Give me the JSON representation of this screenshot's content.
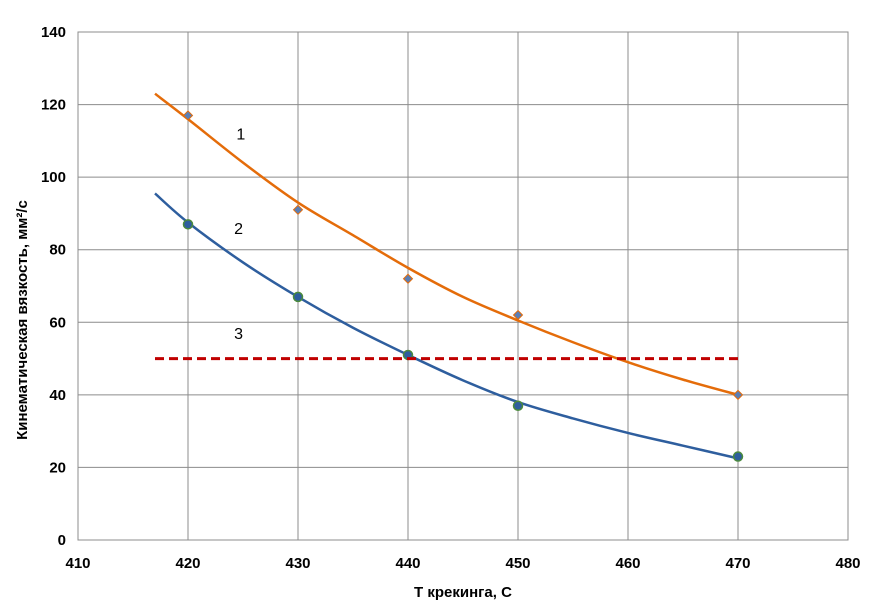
{
  "chart_data": {
    "type": "scatter",
    "title": "",
    "xlabel": "Т крекинга, С",
    "ylabel": "Кинематическая  вязкость, мм²/с",
    "xlim": [
      410,
      480
    ],
    "ylim": [
      0,
      140
    ],
    "x_ticks": [
      410,
      420,
      430,
      440,
      450,
      460,
      470,
      480
    ],
    "y_ticks": [
      0,
      20,
      40,
      60,
      80,
      100,
      120,
      140
    ],
    "grid": true,
    "legend": "none",
    "series": [
      {
        "label": "1",
        "color": "#e46c0a",
        "marker": "diamond",
        "marker_color": "#5b7fb5",
        "points": [
          [
            420,
            117
          ],
          [
            430,
            91
          ],
          [
            440,
            72
          ],
          [
            450,
            62
          ],
          [
            470,
            40
          ]
        ],
        "trend": [
          [
            417,
            123
          ],
          [
            420,
            116
          ],
          [
            425,
            104
          ],
          [
            430,
            93
          ],
          [
            435,
            84
          ],
          [
            440,
            75
          ],
          [
            445,
            67
          ],
          [
            450,
            60.5
          ],
          [
            455,
            54.5
          ],
          [
            460,
            49
          ],
          [
            465,
            44.2
          ],
          [
            470,
            40
          ]
        ]
      },
      {
        "label": "2",
        "color": "#2e5e9e",
        "marker": "circle",
        "marker_color": "#4a8a3c",
        "points": [
          [
            420,
            87
          ],
          [
            430,
            67
          ],
          [
            440,
            51
          ],
          [
            450,
            37
          ],
          [
            470,
            23
          ]
        ],
        "trend": [
          [
            417,
            95.5
          ],
          [
            420,
            87.5
          ],
          [
            425,
            76.5
          ],
          [
            430,
            67
          ],
          [
            435,
            58.5
          ],
          [
            440,
            51
          ],
          [
            445,
            44
          ],
          [
            450,
            38
          ],
          [
            455,
            33.5
          ],
          [
            460,
            29.5
          ],
          [
            465,
            26
          ],
          [
            470,
            22.5
          ]
        ]
      },
      {
        "label": "3",
        "color": "#c00000",
        "style": "dashed",
        "line": [
          [
            417,
            50
          ],
          [
            470,
            50
          ]
        ]
      }
    ],
    "annotations": [
      {
        "text": "1",
        "x": 424.8,
        "y": 112
      },
      {
        "text": "2",
        "x": 424.6,
        "y": 86
      },
      {
        "text": "3",
        "x": 424.6,
        "y": 57
      }
    ]
  }
}
